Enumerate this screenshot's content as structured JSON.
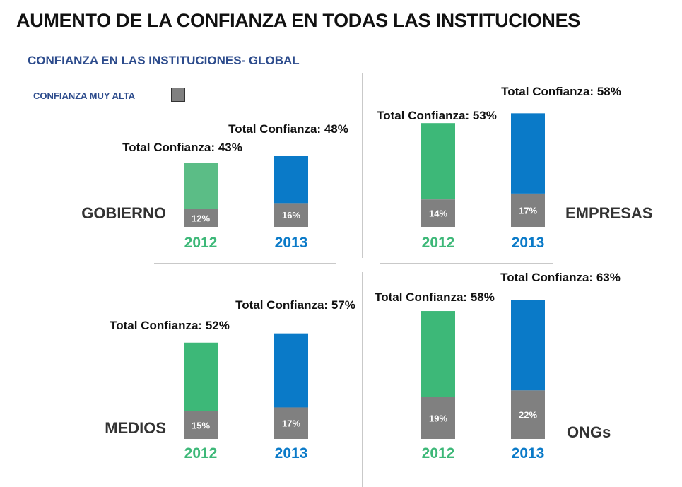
{
  "title": "AUMENTO DE LA CONFIANZA EN TODAS LAS INSTITUCIONES",
  "subtitle": "CONFIANZA EN LAS INSTITUCIONES- GLOBAL",
  "legend": {
    "label": "CONFIANZA MUY ALTA",
    "color": "#808080"
  },
  "colors": {
    "y2012": "#3db878",
    "y2012_light": "#5bbd86",
    "y2013": "#0a7ac8",
    "very_high": "#808080"
  },
  "chart_data": [
    {
      "type": "bar",
      "stacked": true,
      "title": "GOBIERNO",
      "categories": [
        "2012",
        "2013"
      ],
      "series": [
        {
          "name": "CONFIANZA MUY ALTA",
          "values": [
            12,
            16
          ]
        }
      ],
      "totals": [
        43,
        48
      ],
      "total_labels": [
        "Total Confianza: 43%",
        "Total Confianza: 48%"
      ],
      "value_labels": [
        "12%",
        "16%"
      ]
    },
    {
      "type": "bar",
      "stacked": true,
      "title": "EMPRESAS",
      "categories": [
        "2012",
        "2013"
      ],
      "series": [
        {
          "name": "CONFIANZA MUY ALTA",
          "values": [
            14,
            17
          ]
        }
      ],
      "totals": [
        53,
        58
      ],
      "total_labels": [
        "Total Confianza: 53%",
        "Total Confianza: 58%"
      ],
      "value_labels": [
        "14%",
        "17%"
      ]
    },
    {
      "type": "bar",
      "stacked": true,
      "title": "MEDIOS",
      "categories": [
        "2012",
        "2013"
      ],
      "series": [
        {
          "name": "CONFIANZA MUY ALTA",
          "values": [
            15,
            17
          ]
        }
      ],
      "totals": [
        52,
        57
      ],
      "total_labels": [
        "Total Confianza: 52%",
        "Total Confianza: 57%"
      ],
      "value_labels": [
        "15%",
        "17%"
      ]
    },
    {
      "type": "bar",
      "stacked": true,
      "title": "ONGs",
      "categories": [
        "2012",
        "2013"
      ],
      "series": [
        {
          "name": "CONFIANZA MUY ALTA",
          "values": [
            19,
            22
          ]
        }
      ],
      "totals": [
        58,
        63
      ],
      "total_labels": [
        "Total Confianza: 58%",
        "Total Confianza: 63%"
      ],
      "value_labels": [
        "19%",
        "22%"
      ]
    }
  ]
}
